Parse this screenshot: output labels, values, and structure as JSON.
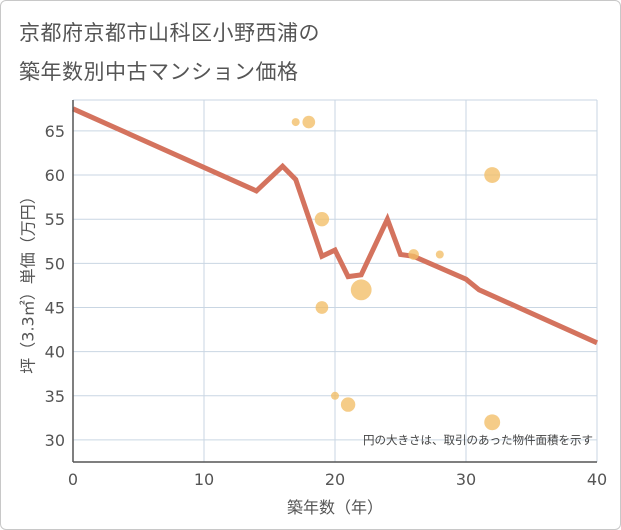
{
  "chart_data": {
    "type": "scatter",
    "title": [
      "京都府京都市山科区小野西浦の",
      "築年数別中古マンション価格"
    ],
    "xlabel": "築年数（年）",
    "ylabel": "坪（3.3㎡）単価（万円）",
    "xlim": [
      0,
      40
    ],
    "ylim": [
      27.5,
      68.5
    ],
    "xticks": [
      0,
      10,
      20,
      30,
      40
    ],
    "yticks": [
      30,
      35,
      40,
      45,
      50,
      55,
      60,
      65
    ],
    "grid": true,
    "note": "円の大きさは、取引のあった物件面積を示す",
    "colors": {
      "line": "#d4735e",
      "bubble": "#f2be66",
      "grid": "#c9d6e3",
      "plot_border": "#555555"
    },
    "series": [
      {
        "name": "trend",
        "kind": "line",
        "x": [
          0,
          14,
          16,
          17,
          19,
          20,
          21,
          22,
          24,
          25,
          26,
          30,
          31,
          40
        ],
        "y": [
          67.5,
          58.2,
          61.0,
          59.5,
          50.8,
          51.5,
          48.5,
          48.7,
          55.0,
          51.0,
          50.8,
          48.2,
          47.0,
          41.0
        ]
      },
      {
        "name": "transactions",
        "kind": "bubble",
        "x": [
          17,
          18,
          19,
          19,
          20,
          21,
          22,
          26,
          28,
          32,
          32
        ],
        "y": [
          66,
          66,
          55,
          45,
          35,
          34,
          47,
          51,
          51,
          60,
          32
        ],
        "size": [
          1,
          3,
          4,
          3,
          1,
          4,
          9,
          2,
          1,
          5,
          5
        ]
      }
    ]
  }
}
